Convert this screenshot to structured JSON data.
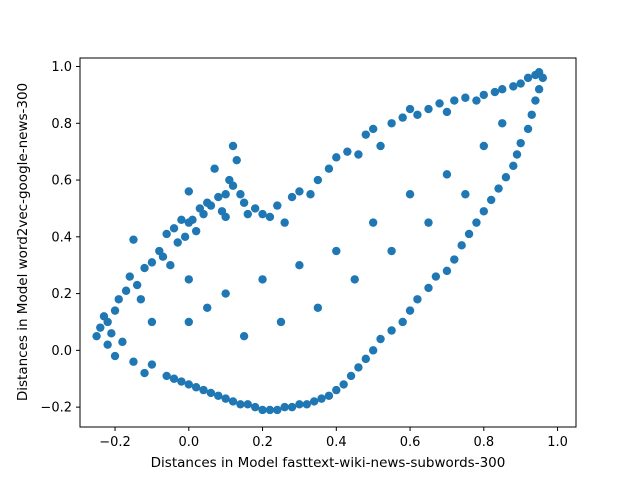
{
  "chart_data": {
    "type": "scatter",
    "title": "",
    "xlabel": "Distances in Model fasttext-wiki-news-subwords-300",
    "ylabel": "Distances in Model word2vec-google-news-300",
    "xlim": [
      -0.295,
      1.05
    ],
    "ylim": [
      -0.27,
      1.03
    ],
    "x_ticks": [
      -0.2,
      0.0,
      0.2,
      0.4,
      0.6,
      0.8,
      1.0
    ],
    "x_tick_labels": [
      "−0.2",
      "0.0",
      "0.2",
      "0.4",
      "0.6",
      "0.8",
      "1.0"
    ],
    "y_ticks": [
      -0.2,
      0.0,
      0.2,
      0.4,
      0.6,
      0.8,
      1.0
    ],
    "y_tick_labels": [
      "−0.2",
      "0.0",
      "0.2",
      "0.4",
      "0.6",
      "0.8",
      "1.0"
    ],
    "grid": false,
    "legend": "none",
    "marker_color": "#1f77b4",
    "series": [
      {
        "points": [
          [
            -0.25,
            0.05
          ],
          [
            -0.24,
            0.08
          ],
          [
            -0.23,
            0.12
          ],
          [
            -0.22,
            0.1
          ],
          [
            -0.22,
            0.02
          ],
          [
            -0.21,
            0.06
          ],
          [
            -0.2,
            0.14
          ],
          [
            -0.2,
            -0.02
          ],
          [
            -0.19,
            0.18
          ],
          [
            -0.18,
            0.03
          ],
          [
            -0.17,
            0.21
          ],
          [
            -0.16,
            0.26
          ],
          [
            -0.15,
            0.39
          ],
          [
            -0.15,
            -0.04
          ],
          [
            -0.14,
            0.23
          ],
          [
            -0.13,
            0.18
          ],
          [
            -0.12,
            0.29
          ],
          [
            -0.12,
            -0.08
          ],
          [
            -0.1,
            0.31
          ],
          [
            -0.1,
            -0.05
          ],
          [
            -0.08,
            0.35
          ],
          [
            -0.07,
            0.33
          ],
          [
            -0.06,
            0.41
          ],
          [
            -0.05,
            0.3
          ],
          [
            -0.04,
            0.43
          ],
          [
            -0.03,
            0.38
          ],
          [
            -0.02,
            0.46
          ],
          [
            -0.01,
            0.4
          ],
          [
            0.0,
            0.45
          ],
          [
            0.0,
            0.56
          ],
          [
            0.01,
            0.46
          ],
          [
            0.02,
            0.42
          ],
          [
            0.03,
            0.5
          ],
          [
            0.04,
            0.48
          ],
          [
            0.05,
            0.52
          ],
          [
            0.06,
            0.51
          ],
          [
            0.07,
            0.64
          ],
          [
            0.08,
            0.54
          ],
          [
            0.09,
            0.49
          ],
          [
            0.1,
            0.47
          ],
          [
            0.1,
            0.55
          ],
          [
            0.11,
            0.6
          ],
          [
            0.12,
            0.58
          ],
          [
            0.12,
            0.72
          ],
          [
            0.13,
            0.67
          ],
          [
            0.14,
            0.55
          ],
          [
            0.15,
            0.52
          ],
          [
            0.16,
            0.48
          ],
          [
            0.18,
            0.5
          ],
          [
            0.2,
            0.48
          ],
          [
            0.22,
            0.47
          ],
          [
            0.24,
            0.51
          ],
          [
            0.26,
            0.45
          ],
          [
            0.28,
            0.54
          ],
          [
            0.3,
            0.56
          ],
          [
            0.33,
            0.55
          ],
          [
            0.35,
            0.6
          ],
          [
            0.38,
            0.64
          ],
          [
            0.4,
            0.68
          ],
          [
            0.43,
            0.7
          ],
          [
            0.46,
            0.69
          ],
          [
            0.48,
            0.76
          ],
          [
            0.5,
            0.78
          ],
          [
            0.52,
            0.72
          ],
          [
            0.55,
            0.8
          ],
          [
            0.58,
            0.82
          ],
          [
            0.6,
            0.85
          ],
          [
            0.62,
            0.83
          ],
          [
            0.65,
            0.85
          ],
          [
            0.68,
            0.87
          ],
          [
            0.7,
            0.84
          ],
          [
            0.72,
            0.88
          ],
          [
            0.75,
            0.89
          ],
          [
            0.78,
            0.88
          ],
          [
            0.8,
            0.9
          ],
          [
            0.83,
            0.91
          ],
          [
            0.85,
            0.92
          ],
          [
            0.88,
            0.93
          ],
          [
            0.9,
            0.94
          ],
          [
            0.92,
            0.96
          ],
          [
            0.94,
            0.97
          ],
          [
            0.95,
            0.98
          ],
          [
            0.96,
            0.96
          ],
          [
            0.95,
            0.92
          ],
          [
            0.94,
            0.88
          ],
          [
            0.93,
            0.83
          ],
          [
            0.92,
            0.78
          ],
          [
            0.9,
            0.73
          ],
          [
            0.89,
            0.69
          ],
          [
            0.88,
            0.65
          ],
          [
            0.86,
            0.61
          ],
          [
            0.84,
            0.57
          ],
          [
            0.82,
            0.53
          ],
          [
            0.8,
            0.49
          ],
          [
            0.78,
            0.45
          ],
          [
            0.76,
            0.41
          ],
          [
            0.74,
            0.37
          ],
          [
            0.72,
            0.32
          ],
          [
            0.7,
            0.28
          ],
          [
            0.67,
            0.26
          ],
          [
            0.65,
            0.22
          ],
          [
            0.62,
            0.18
          ],
          [
            0.6,
            0.14
          ],
          [
            0.58,
            0.1
          ],
          [
            0.55,
            0.07
          ],
          [
            0.52,
            0.04
          ],
          [
            0.5,
            0.0
          ],
          [
            0.48,
            -0.03
          ],
          [
            0.46,
            -0.06
          ],
          [
            0.44,
            -0.09
          ],
          [
            0.42,
            -0.12
          ],
          [
            0.4,
            -0.14
          ],
          [
            0.38,
            -0.16
          ],
          [
            0.36,
            -0.17
          ],
          [
            0.34,
            -0.18
          ],
          [
            0.32,
            -0.19
          ],
          [
            0.3,
            -0.19
          ],
          [
            0.28,
            -0.2
          ],
          [
            0.26,
            -0.2
          ],
          [
            0.24,
            -0.21
          ],
          [
            0.22,
            -0.21
          ],
          [
            0.2,
            -0.21
          ],
          [
            0.18,
            -0.2
          ],
          [
            0.16,
            -0.19
          ],
          [
            0.14,
            -0.19
          ],
          [
            0.12,
            -0.18
          ],
          [
            0.1,
            -0.17
          ],
          [
            0.08,
            -0.16
          ],
          [
            0.06,
            -0.15
          ],
          [
            0.04,
            -0.14
          ],
          [
            0.02,
            -0.13
          ],
          [
            0.0,
            -0.12
          ],
          [
            -0.02,
            -0.11
          ],
          [
            -0.04,
            -0.1
          ],
          [
            -0.06,
            -0.09
          ],
          [
            0.1,
            0.2
          ],
          [
            0.2,
            0.25
          ],
          [
            0.3,
            0.3
          ],
          [
            0.4,
            0.35
          ],
          [
            0.5,
            0.45
          ],
          [
            0.6,
            0.55
          ],
          [
            0.7,
            0.62
          ],
          [
            0.8,
            0.72
          ],
          [
            0.85,
            0.8
          ],
          [
            0.0,
            0.1
          ],
          [
            0.05,
            0.15
          ],
          [
            0.15,
            0.05
          ],
          [
            0.25,
            0.1
          ],
          [
            0.35,
            0.15
          ],
          [
            0.45,
            0.25
          ],
          [
            0.55,
            0.35
          ],
          [
            0.65,
            0.45
          ],
          [
            0.75,
            0.55
          ],
          [
            -0.1,
            0.1
          ],
          [
            0.0,
            0.25
          ]
        ]
      }
    ]
  }
}
